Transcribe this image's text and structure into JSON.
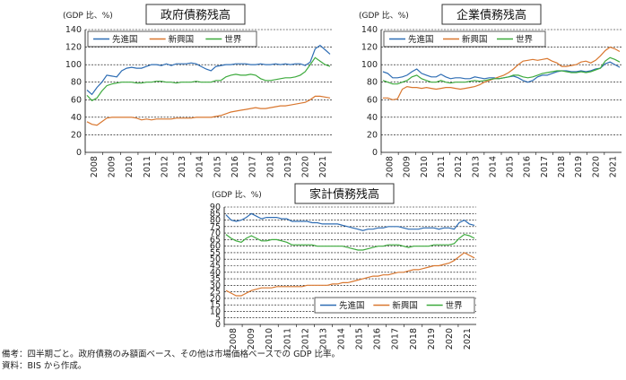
{
  "colors": {
    "advanced": "#2e6db4",
    "emerging": "#d9772f",
    "world": "#3daa3d"
  },
  "chart_data": [
    {
      "type": "line",
      "title": "政府債務残高",
      "ylabel": "(GDP 比、%)",
      "ylim": [
        0,
        140
      ],
      "yticks": [
        "0",
        "20",
        "40",
        "60",
        "80",
        "100",
        "120",
        "140"
      ],
      "xticks": [
        "2008",
        "2009",
        "2010",
        "2011",
        "2012",
        "2013",
        "2014",
        "2015",
        "2016",
        "2017",
        "2018",
        "2019",
        "2020",
        "2021"
      ],
      "x_start": 2008,
      "legend_position": "top",
      "series": [
        {
          "name": "先進国",
          "key": "advanced",
          "values": [
            71,
            66,
            74,
            80,
            88,
            87,
            86,
            93,
            96,
            97,
            96,
            96,
            98,
            100,
            100,
            99,
            101,
            99,
            101,
            101,
            101,
            102,
            101,
            98,
            95,
            93,
            98,
            99,
            100,
            100,
            101,
            101,
            101,
            100,
            100,
            101,
            100,
            100,
            101,
            100,
            101,
            100,
            101,
            101,
            99,
            103,
            118,
            122,
            117,
            112
          ]
        },
        {
          "name": "新興国",
          "key": "emerging",
          "values": [
            35,
            32,
            31,
            35,
            39,
            40,
            40,
            40,
            40,
            40,
            39,
            37,
            38,
            37,
            38,
            38,
            38,
            38,
            39,
            39,
            39,
            39,
            40,
            40,
            40,
            40,
            41,
            42,
            44,
            46,
            47,
            48,
            49,
            50,
            51,
            50,
            50,
            51,
            52,
            53,
            53,
            54,
            55,
            56,
            57,
            60,
            64,
            64,
            63,
            62
          ]
        },
        {
          "name": "世界",
          "key": "world",
          "values": [
            65,
            59,
            62,
            70,
            76,
            78,
            79,
            80,
            80,
            80,
            79,
            79,
            80,
            80,
            81,
            81,
            80,
            80,
            79,
            80,
            80,
            80,
            81,
            80,
            80,
            80,
            82,
            82,
            86,
            88,
            89,
            88,
            88,
            89,
            88,
            84,
            82,
            82,
            83,
            84,
            85,
            85,
            86,
            88,
            92,
            100,
            108,
            104,
            100,
            98
          ]
        }
      ]
    },
    {
      "type": "line",
      "title": "企業債務残高",
      "ylabel": "(GDP 比、%)",
      "ylim": [
        0,
        140
      ],
      "yticks": [
        "0",
        "20",
        "40",
        "60",
        "80",
        "100",
        "120",
        "140"
      ],
      "xticks": [
        "2008",
        "2009",
        "2010",
        "2011",
        "2012",
        "2013",
        "2014",
        "2015",
        "2016",
        "2017",
        "2018",
        "2019",
        "2020",
        "2021"
      ],
      "x_start": 2008,
      "legend_position": "top",
      "series": [
        {
          "name": "先進国",
          "key": "advanced",
          "values": [
            92,
            90,
            85,
            85,
            86,
            88,
            92,
            95,
            90,
            88,
            86,
            86,
            89,
            86,
            84,
            85,
            85,
            84,
            84,
            86,
            85,
            84,
            85,
            85,
            84,
            85,
            86,
            87,
            85,
            82,
            80,
            82,
            86,
            88,
            88,
            90,
            92,
            93,
            93,
            92,
            92,
            93,
            92,
            93,
            95,
            96,
            101,
            103,
            100,
            97
          ]
        },
        {
          "name": "新興国",
          "key": "emerging",
          "values": [
            62,
            62,
            60,
            61,
            72,
            75,
            74,
            74,
            73,
            74,
            73,
            72,
            73,
            74,
            74,
            73,
            72,
            73,
            74,
            75,
            77,
            80,
            82,
            84,
            86,
            88,
            91,
            95,
            100,
            104,
            105,
            106,
            105,
            106,
            107,
            104,
            102,
            98,
            98,
            99,
            100,
            103,
            104,
            102,
            105,
            110,
            116,
            120,
            118,
            115
          ]
        },
        {
          "name": "世界",
          "key": "world",
          "values": [
            82,
            80,
            78,
            78,
            80,
            82,
            86,
            88,
            84,
            82,
            80,
            80,
            82,
            80,
            79,
            80,
            80,
            80,
            81,
            82,
            81,
            82,
            83,
            84,
            84,
            85,
            86,
            88,
            88,
            86,
            85,
            86,
            88,
            90,
            91,
            92,
            93,
            93,
            92,
            91,
            91,
            92,
            91,
            92,
            94,
            96,
            104,
            108,
            106,
            103
          ]
        }
      ]
    },
    {
      "type": "line",
      "title": "家計債務残高",
      "ylabel": "(GDP 比、%)",
      "ylim": [
        0,
        90
      ],
      "yticks": [
        "0",
        "5",
        "10",
        "15",
        "20",
        "25",
        "30",
        "35",
        "40",
        "45",
        "50",
        "55",
        "60",
        "65",
        "70",
        "75",
        "80",
        "85",
        "90"
      ],
      "xticks": [
        "2008",
        "2009",
        "2010",
        "2011",
        "2012",
        "2013",
        "2014",
        "2015",
        "2016",
        "2017",
        "2018",
        "2019",
        "2020",
        "2021"
      ],
      "x_start": 2008,
      "legend_position": "bottom",
      "series": [
        {
          "name": "先進国",
          "key": "advanced",
          "values": [
            84,
            80,
            79,
            80,
            82,
            85,
            83,
            81,
            82,
            82,
            82,
            81,
            81,
            79,
            79,
            79,
            79,
            78,
            78,
            77,
            77,
            77,
            77,
            76,
            75,
            74,
            73,
            72,
            73,
            73,
            74,
            74,
            75,
            75,
            75,
            74,
            73,
            73,
            73,
            74,
            74,
            74,
            73,
            74,
            74,
            73,
            78,
            80,
            77,
            76
          ]
        },
        {
          "name": "新興国",
          "key": "emerging",
          "values": [
            26,
            24,
            22,
            22,
            24,
            26,
            27,
            28,
            28,
            28,
            29,
            29,
            29,
            29,
            29,
            29,
            30,
            30,
            30,
            30,
            30,
            31,
            31,
            32,
            32,
            33,
            34,
            35,
            36,
            37,
            37,
            38,
            38,
            39,
            40,
            40,
            41,
            42,
            42,
            43,
            44,
            45,
            45,
            46,
            47,
            49,
            52,
            55,
            53,
            51
          ]
        },
        {
          "name": "世界",
          "key": "world",
          "values": [
            69,
            66,
            64,
            63,
            66,
            68,
            66,
            64,
            64,
            65,
            65,
            64,
            63,
            61,
            61,
            61,
            61,
            61,
            60,
            60,
            60,
            60,
            60,
            60,
            59,
            58,
            57,
            57,
            58,
            59,
            60,
            60,
            61,
            61,
            61,
            60,
            59,
            60,
            60,
            60,
            60,
            61,
            61,
            61,
            61,
            62,
            66,
            69,
            68,
            66
          ]
        }
      ]
    }
  ],
  "notes": [
    "備考：四半期ごと。政府債務のみ額面ベース、その他は市場価格ベースでの GDP 比率。",
    "資料：BIS から作成。"
  ]
}
